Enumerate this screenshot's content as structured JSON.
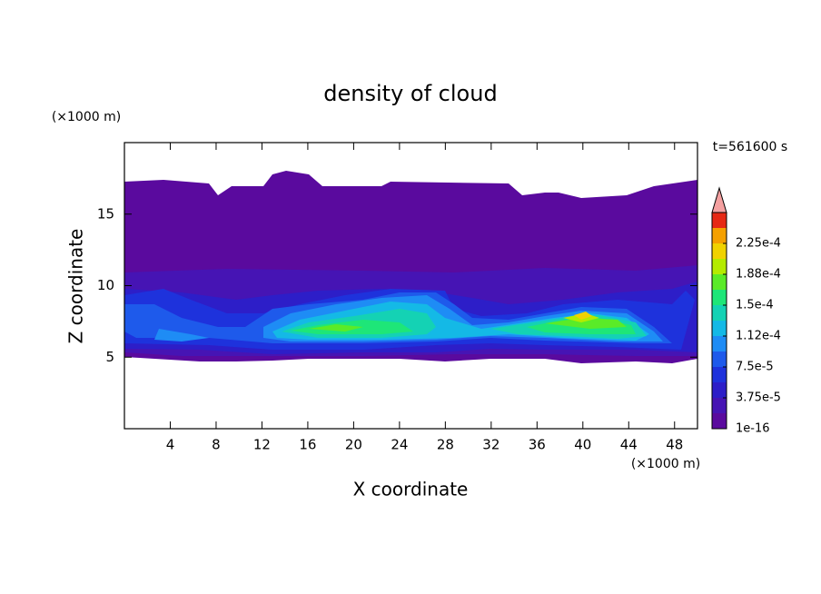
{
  "chart_data": {
    "type": "contour",
    "title": "density of cloud",
    "xlabel": "X coordinate",
    "ylabel": "Z coordinate",
    "xunit": "(×1000 m)",
    "yunit": "(×1000 m)",
    "time_label": "t=561600 s",
    "xlim": [
      0,
      50
    ],
    "ylim": [
      0,
      20
    ],
    "xticks": [
      4,
      8,
      12,
      16,
      20,
      24,
      28,
      32,
      36,
      40,
      44,
      48
    ],
    "yticks": [
      5,
      10,
      15
    ],
    "colorbar": {
      "levels": [
        1e-16,
        1.875e-05,
        3.75e-05,
        5.625e-05,
        7.5e-05,
        9.375e-05,
        0.0001125,
        0.00013125,
        0.00015,
        0.00016875,
        0.0001875,
        0.00020625,
        0.000225,
        0.00024375
      ],
      "colors": [
        "#5a0a9e",
        "#4614b4",
        "#2d1ec8",
        "#1e32dc",
        "#1e5aeb",
        "#1e8cf5",
        "#14b9e6",
        "#14d2b4",
        "#1ee678",
        "#5aeb28",
        "#b4eb00",
        "#f0d200",
        "#f5a000",
        "#e62814"
      ],
      "extend_color": "#f4a0a0",
      "ticks": [
        {
          "value": 1e-16,
          "label": "1e-16"
        },
        {
          "value": 3.75e-05,
          "label": "3.75e-5"
        },
        {
          "value": 7.5e-05,
          "label": "7.5e-5"
        },
        {
          "value": 0.0001125,
          "label": "1.12e-4"
        },
        {
          "value": 0.00015,
          "label": "1.5e-4"
        },
        {
          "value": 0.0001875,
          "label": "1.88e-4"
        },
        {
          "value": 0.000225,
          "label": "2.25e-4"
        }
      ]
    }
  }
}
